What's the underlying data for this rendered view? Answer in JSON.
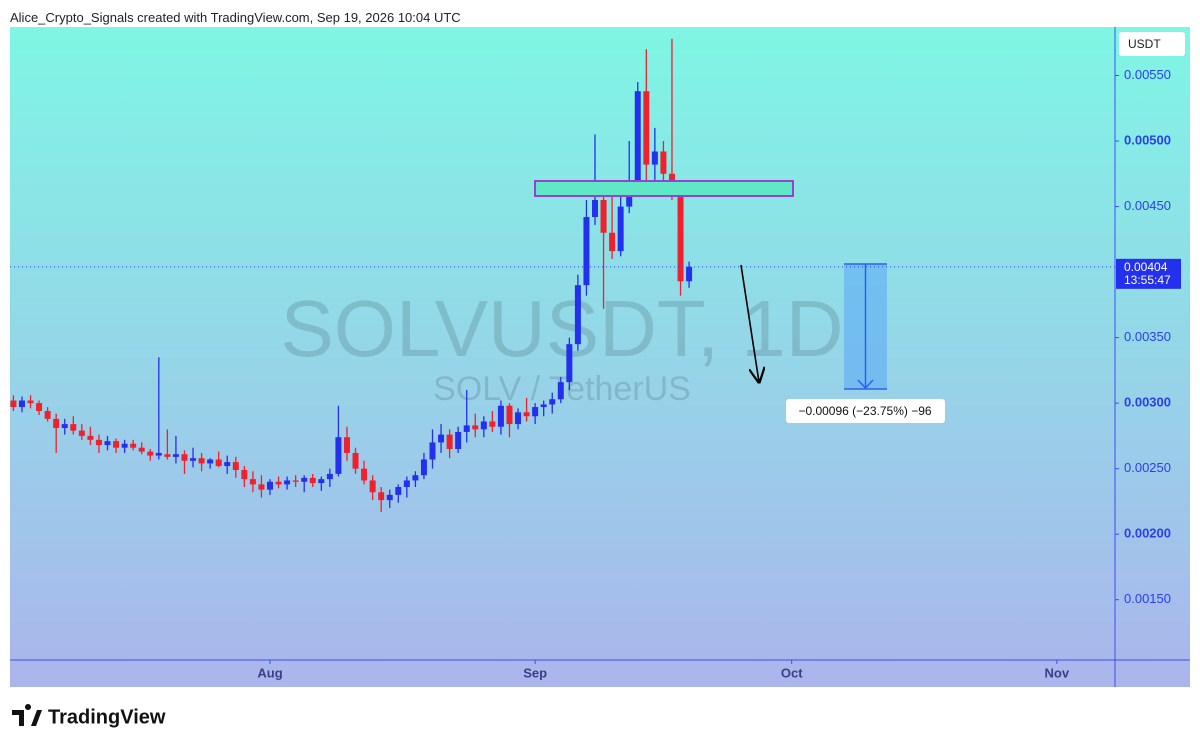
{
  "header": {
    "credit": "Alice_Crypto_Signals created with TradingView.com, Sep 19, 2026 10:04 UTC"
  },
  "footer": {
    "logo": "TradingView"
  },
  "chart_data": {
    "type": "candlestick",
    "title": "SOLVUSDT, 1D",
    "subtitle": "SOLV / TetherUS",
    "currency": "USDT",
    "up_color": "#2330ee",
    "down_color": "#f0202c",
    "last_price": {
      "value": 0.00404,
      "label": "0.00404"
    },
    "countdown": "13:55:47",
    "measure_label": "−0.00096 (−23.75%) −96",
    "xlim": [
      -30.4,
      98.8
    ],
    "xticks": [
      {
        "value": 0,
        "label": "Aug"
      },
      {
        "value": 31,
        "label": "Sep"
      },
      {
        "value": 61,
        "label": "Oct"
      },
      {
        "value": 92,
        "label": "Nov"
      }
    ],
    "ylim": [
      0.00104,
      0.00587
    ],
    "yticks": [
      {
        "value": 0.0015,
        "label": "0.00150"
      },
      {
        "value": 0.002,
        "label": "0.00200"
      },
      {
        "value": 0.0025,
        "label": "0.00250"
      },
      {
        "value": 0.003,
        "label": "0.00300"
      },
      {
        "value": 0.0035,
        "label": "0.00350"
      },
      {
        "value": 0.0045,
        "label": "0.00450"
      },
      {
        "value": 0.005,
        "label": "0.00500"
      },
      {
        "value": 0.0055,
        "label": "0.00550"
      }
    ],
    "x": [
      -30,
      -29,
      -28,
      -27,
      -26,
      -25,
      -24,
      -23,
      -22,
      -21,
      -20,
      -19,
      -18,
      -17,
      -16,
      -15,
      -14,
      -13,
      -12,
      -11,
      -10,
      -9,
      -8,
      -7,
      -6,
      -5,
      -4,
      -3,
      -2,
      -1,
      0,
      1,
      2,
      3,
      4,
      5,
      6,
      7,
      8,
      9,
      10,
      11,
      12,
      13,
      14,
      15,
      16,
      17,
      18,
      19,
      20,
      21,
      22,
      23,
      24,
      25,
      26,
      27,
      28,
      29,
      30,
      31,
      32,
      33,
      34,
      35,
      36,
      37,
      38,
      39,
      40,
      41,
      42,
      43,
      44,
      45,
      46,
      47,
      48,
      49
    ],
    "open": [
      0.00302,
      0.00297,
      0.00302,
      0.003,
      0.00294,
      0.00288,
      0.00281,
      0.00284,
      0.00279,
      0.00275,
      0.00272,
      0.00268,
      0.00271,
      0.00266,
      0.00269,
      0.00266,
      0.00263,
      0.0026,
      0.00261,
      0.00259,
      0.00261,
      0.00256,
      0.00258,
      0.00254,
      0.00257,
      0.00252,
      0.00255,
      0.00249,
      0.00242,
      0.00238,
      0.00234,
      0.0024,
      0.00238,
      0.00241,
      0.0024,
      0.00243,
      0.00239,
      0.00242,
      0.00246,
      0.00274,
      0.00262,
      0.0025,
      0.00241,
      0.00232,
      0.00226,
      0.0023,
      0.00236,
      0.00241,
      0.00245,
      0.00257,
      0.0027,
      0.00276,
      0.00265,
      0.00278,
      0.00283,
      0.0028,
      0.00286,
      0.00282,
      0.00298,
      0.00284,
      0.00293,
      0.0029,
      0.00297,
      0.00299,
      0.00303,
      0.00316,
      0.00345,
      0.0039,
      0.00442,
      0.00455,
      0.0043,
      0.00416,
      0.0045,
      0.0047,
      0.00538,
      0.00482,
      0.00492,
      0.00475,
      0.0046,
      0.00393
    ],
    "high": [
      0.00306,
      0.00305,
      0.00306,
      0.00302,
      0.00297,
      0.00292,
      0.00288,
      0.0029,
      0.00284,
      0.00282,
      0.00276,
      0.00275,
      0.00273,
      0.00272,
      0.00272,
      0.0027,
      0.00265,
      0.00335,
      0.0028,
      0.00275,
      0.00264,
      0.00266,
      0.00262,
      0.00258,
      0.00263,
      0.0026,
      0.00259,
      0.00252,
      0.00248,
      0.00245,
      0.00242,
      0.00244,
      0.00244,
      0.00245,
      0.00245,
      0.00246,
      0.00244,
      0.0025,
      0.00298,
      0.00282,
      0.00266,
      0.00256,
      0.00245,
      0.00236,
      0.00234,
      0.00238,
      0.00244,
      0.00248,
      0.00262,
      0.0028,
      0.00284,
      0.0028,
      0.00282,
      0.0031,
      0.00292,
      0.0029,
      0.00294,
      0.00302,
      0.003,
      0.00296,
      0.00304,
      0.003,
      0.00302,
      0.00308,
      0.0032,
      0.0035,
      0.00398,
      0.00455,
      0.00505,
      0.0047,
      0.00465,
      0.0047,
      0.005,
      0.00545,
      0.0057,
      0.0051,
      0.005,
      0.00578,
      0.00462,
      0.00408
    ],
    "low": [
      0.00294,
      0.00293,
      0.00296,
      0.00291,
      0.00286,
      0.00262,
      0.00276,
      0.00276,
      0.00272,
      0.00268,
      0.00262,
      0.00264,
      0.00262,
      0.00262,
      0.00264,
      0.00261,
      0.00256,
      0.00257,
      0.00257,
      0.00254,
      0.00246,
      0.00251,
      0.00248,
      0.0025,
      0.00251,
      0.00246,
      0.00243,
      0.00236,
      0.00232,
      0.00228,
      0.0023,
      0.00235,
      0.00234,
      0.00236,
      0.00232,
      0.00236,
      0.00233,
      0.00236,
      0.00244,
      0.00256,
      0.00246,
      0.00238,
      0.00226,
      0.00217,
      0.0022,
      0.00224,
      0.00228,
      0.00236,
      0.00242,
      0.0025,
      0.00262,
      0.00258,
      0.00262,
      0.0027,
      0.00274,
      0.00274,
      0.00278,
      0.00276,
      0.00274,
      0.0028,
      0.00286,
      0.00284,
      0.0029,
      0.00292,
      0.003,
      0.0031,
      0.0034,
      0.00382,
      0.00436,
      0.00372,
      0.0041,
      0.00412,
      0.00445,
      0.0046,
      0.0047,
      0.00462,
      0.00465,
      0.00455,
      0.00382,
      0.00388
    ],
    "close": [
      0.00297,
      0.00302,
      0.003,
      0.00294,
      0.00288,
      0.00281,
      0.00284,
      0.00279,
      0.00275,
      0.00272,
      0.00268,
      0.00271,
      0.00266,
      0.00269,
      0.00266,
      0.00263,
      0.0026,
      0.00262,
      0.00259,
      0.00261,
      0.00256,
      0.00258,
      0.00254,
      0.00257,
      0.00252,
      0.00255,
      0.00249,
      0.00242,
      0.00238,
      0.00234,
      0.0024,
      0.00238,
      0.00241,
      0.0024,
      0.00243,
      0.00239,
      0.00242,
      0.00246,
      0.00274,
      0.00262,
      0.0025,
      0.00241,
      0.00232,
      0.00226,
      0.0023,
      0.00236,
      0.00241,
      0.00245,
      0.00257,
      0.0027,
      0.00276,
      0.00265,
      0.00278,
      0.00283,
      0.0028,
      0.00286,
      0.00282,
      0.00298,
      0.00284,
      0.00293,
      0.0029,
      0.00297,
      0.00299,
      0.00303,
      0.00316,
      0.00345,
      0.0039,
      0.00442,
      0.00455,
      0.0043,
      0.00416,
      0.0045,
      0.0047,
      0.00538,
      0.00482,
      0.00492,
      0.00475,
      0.0046,
      0.00393,
      0.00404
    ]
  }
}
